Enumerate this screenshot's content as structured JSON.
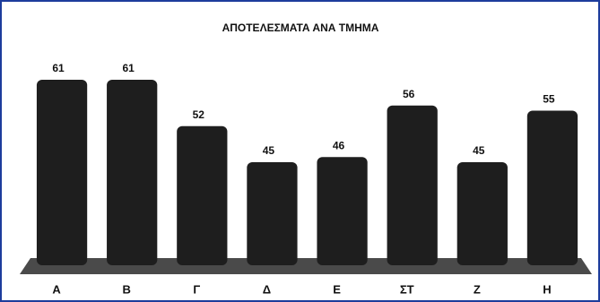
{
  "chart_data": {
    "type": "bar",
    "title": "ΑΠΟΤΕΛΕΣΜΑΤΑ ΑΝΑ ΤΜΗΜΑ",
    "categories": [
      "Α",
      "Β",
      "Γ",
      "Δ",
      "Ε",
      "ΣΤ",
      "Ζ",
      "Η"
    ],
    "values": [
      61,
      61,
      52,
      45,
      46,
      56,
      45,
      55
    ],
    "color": "#1e1e1e",
    "ylim": [
      25,
      65
    ],
    "yticks": [],
    "grid": false
  }
}
